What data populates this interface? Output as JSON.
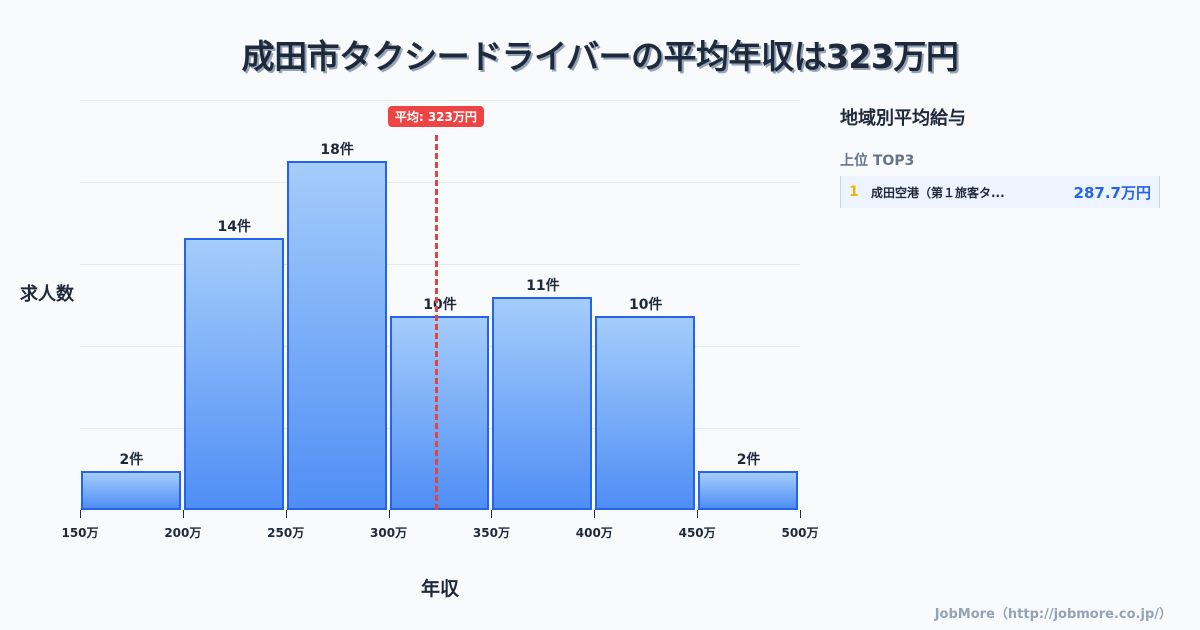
{
  "header": {
    "title": "成田市タクシードライバーの平均年収は323万円"
  },
  "average": {
    "label": "平均: 323万円",
    "value": 323
  },
  "axes": {
    "ylabel": "求人数",
    "xlabel": "年収"
  },
  "ticks": [
    "150万",
    "200万",
    "250万",
    "300万",
    "350万",
    "400万",
    "450万",
    "500万"
  ],
  "bars": [
    {
      "label": "2件",
      "count": 2
    },
    {
      "label": "14件",
      "count": 14
    },
    {
      "label": "18件",
      "count": 18
    },
    {
      "label": "10件",
      "count": 10
    },
    {
      "label": "11件",
      "count": 11
    },
    {
      "label": "10件",
      "count": 10
    },
    {
      "label": "2件",
      "count": 2
    }
  ],
  "panel": {
    "title": "地域別平均給与",
    "subtitle": "上位 TOP3",
    "ranking": [
      {
        "rank": "1",
        "name": "成田空港（第１旅客タ...",
        "value": "287.7万円"
      }
    ]
  },
  "footer": {
    "credit": "JobMore（http://jobmore.co.jp/）"
  },
  "chart_data": {
    "type": "bar",
    "title": "成田市タクシードライバーの平均年収は323万円",
    "xlabel": "年収",
    "ylabel": "求人数",
    "categories": [
      "150-200万",
      "200-250万",
      "250-300万",
      "300-350万",
      "350-400万",
      "400-450万",
      "450-500万"
    ],
    "values": [
      2,
      14,
      18,
      10,
      11,
      10,
      2
    ],
    "x_ticks": [
      "150万",
      "200万",
      "250万",
      "300万",
      "350万",
      "400万",
      "450万",
      "500万"
    ],
    "xlim": [
      150,
      500
    ],
    "ylim": [
      0,
      21
    ],
    "grid": true,
    "annotations": [
      {
        "type": "vline",
        "x": 323,
        "label": "平均: 323万円",
        "color": "#ef4444"
      }
    ],
    "colors": {
      "bar_fill": "#60a5fa",
      "bar_border": "#2563eb"
    }
  }
}
